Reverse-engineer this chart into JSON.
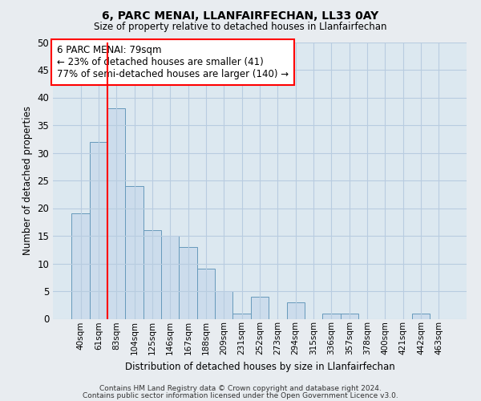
{
  "title1": "6, PARC MENAI, LLANFAIRFECHAN, LL33 0AY",
  "title2": "Size of property relative to detached houses in Llanfairfechan",
  "xlabel": "Distribution of detached houses by size in Llanfairfechan",
  "ylabel": "Number of detached properties",
  "categories": [
    "40sqm",
    "61sqm",
    "83sqm",
    "104sqm",
    "125sqm",
    "146sqm",
    "167sqm",
    "188sqm",
    "209sqm",
    "231sqm",
    "252sqm",
    "273sqm",
    "294sqm",
    "315sqm",
    "336sqm",
    "357sqm",
    "378sqm",
    "400sqm",
    "421sqm",
    "442sqm",
    "463sqm"
  ],
  "values": [
    19,
    32,
    38,
    24,
    16,
    15,
    13,
    9,
    5,
    1,
    4,
    0,
    3,
    0,
    1,
    1,
    0,
    0,
    0,
    1,
    0
  ],
  "bar_color": "#ccdcec",
  "bar_edge_color": "#6699bb",
  "ylim": [
    0,
    50
  ],
  "yticks": [
    0,
    5,
    10,
    15,
    20,
    25,
    30,
    35,
    40,
    45,
    50
  ],
  "property_label": "6 PARC MENAI: 79sqm",
  "annotation_line1": "← 23% of detached houses are smaller (41)",
  "annotation_line2": "77% of semi-detached houses are larger (140) →",
  "vline_x": 1.5,
  "footnote1": "Contains HM Land Registry data © Crown copyright and database right 2024.",
  "footnote2": "Contains public sector information licensed under the Open Government Licence v3.0.",
  "bg_color": "#e8ecf0",
  "plot_bg_color": "#dce8f0",
  "grid_color": "#b8cce0"
}
